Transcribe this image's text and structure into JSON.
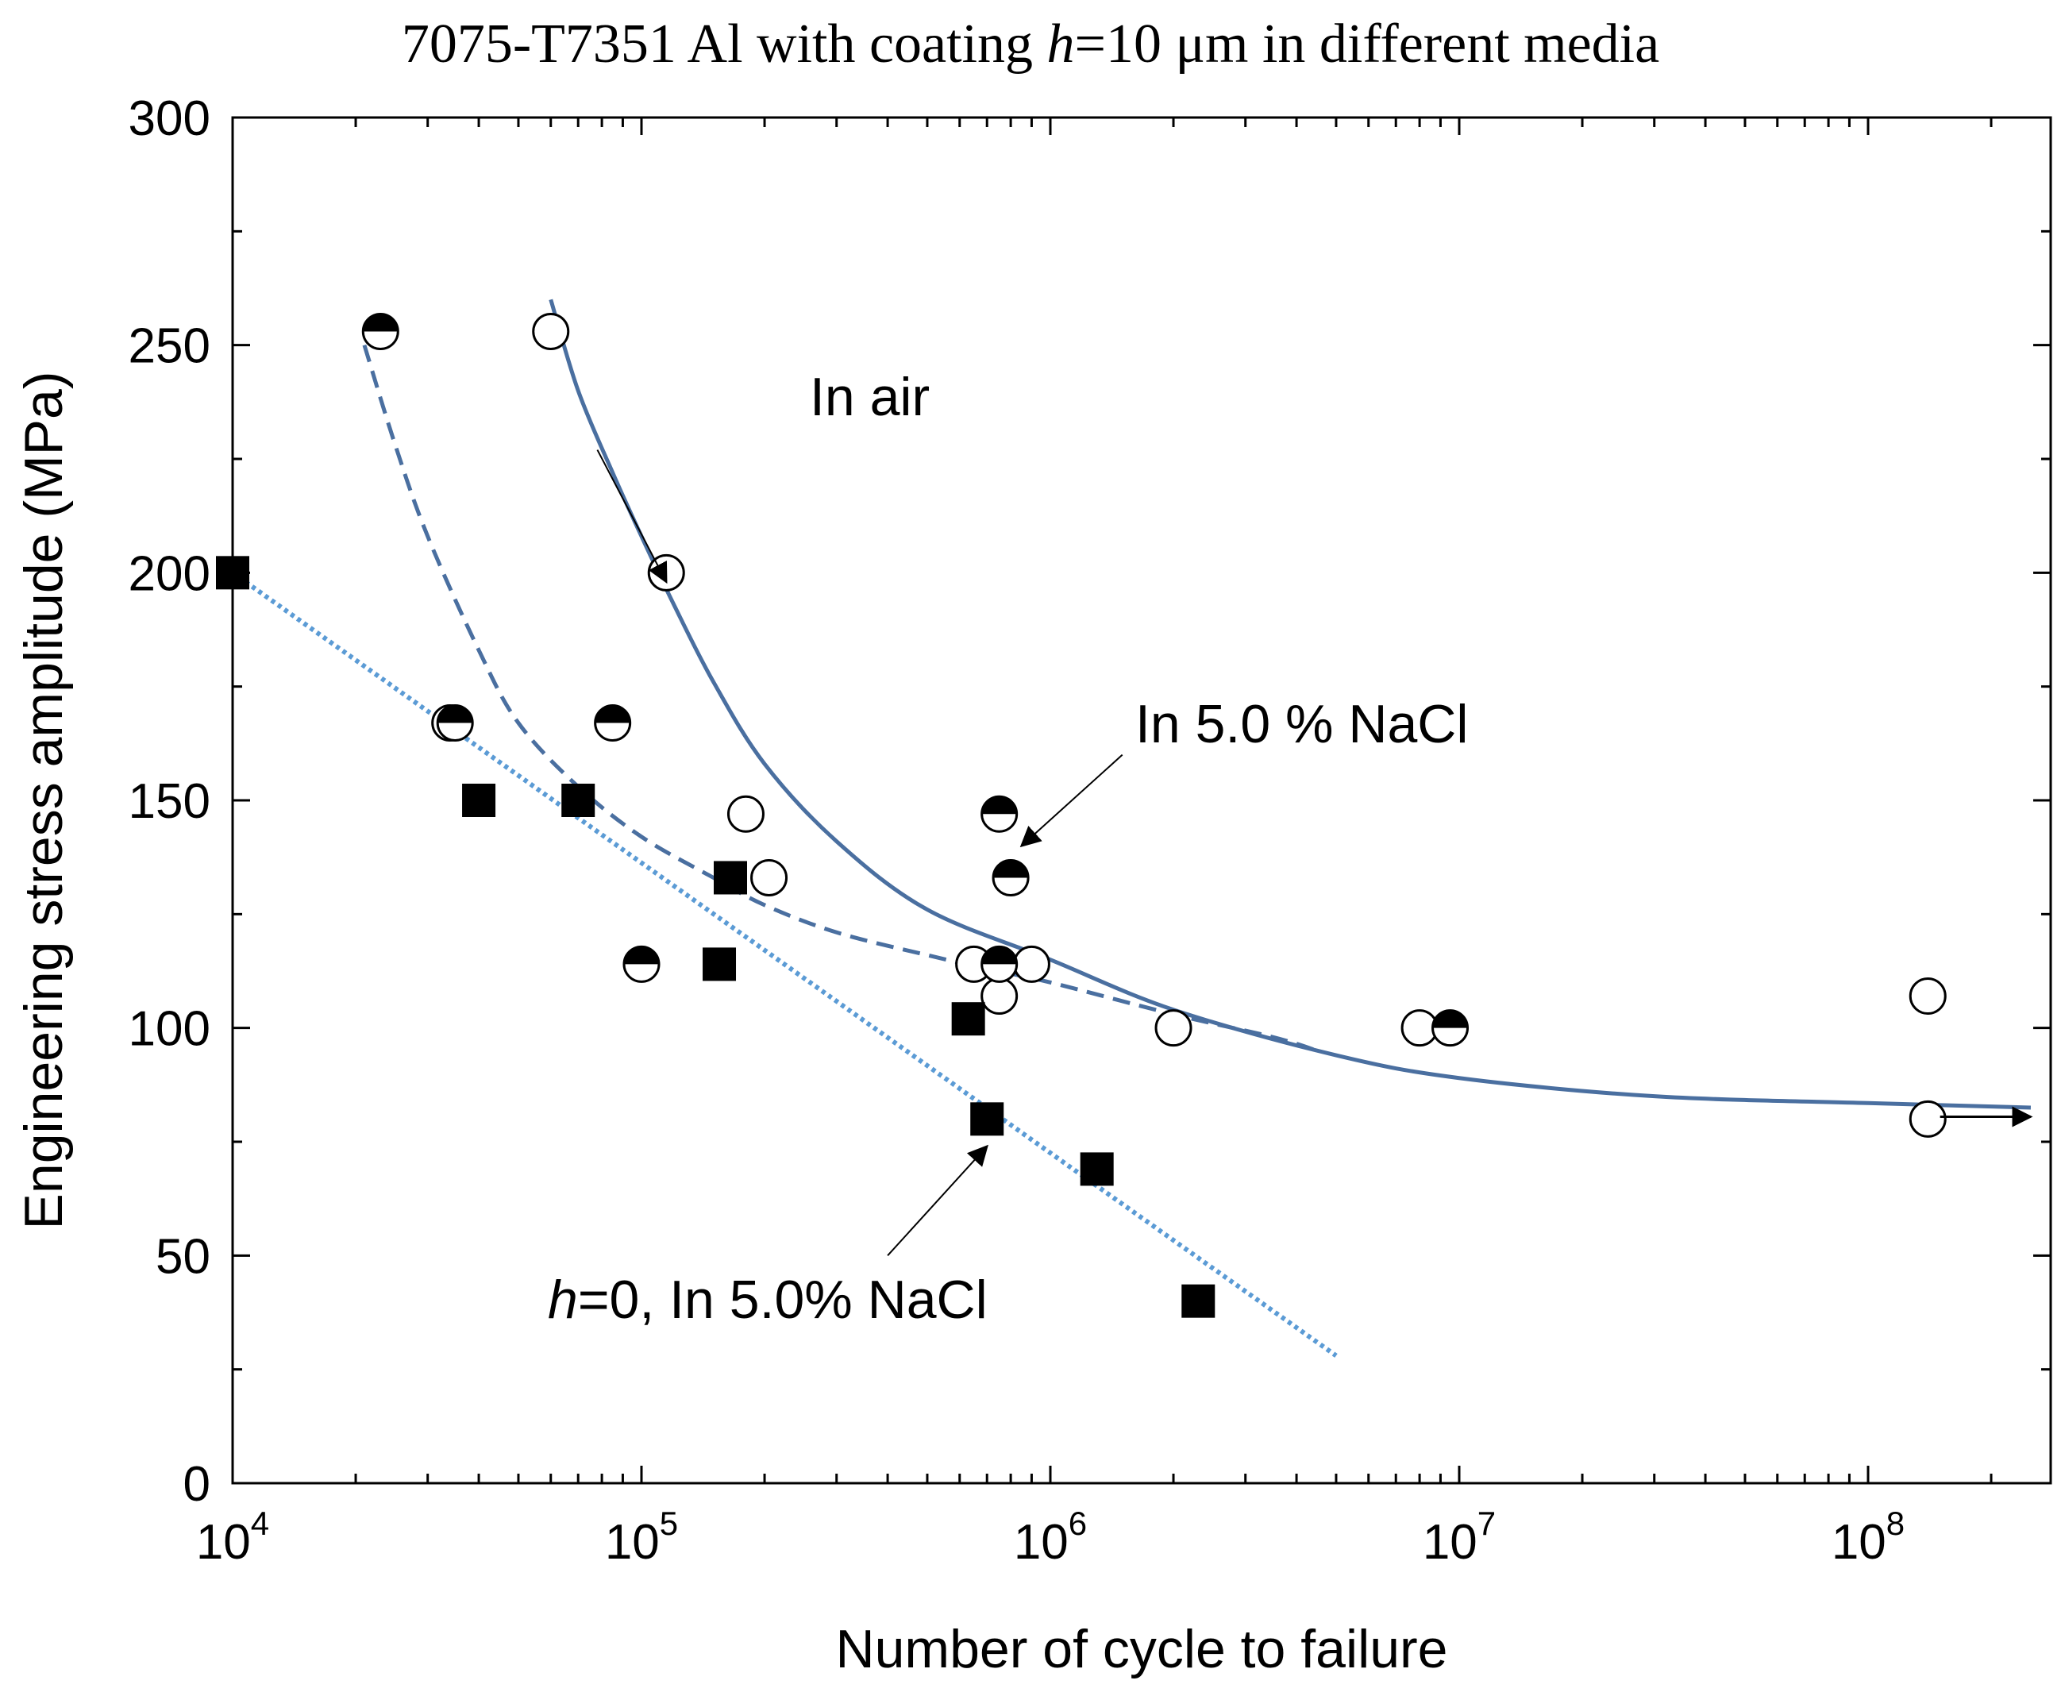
{
  "chart_data": {
    "type": "scatter",
    "title_parts": [
      "7075-T7351 Al with coating ",
      "h",
      "=10 μm in different media"
    ],
    "xlabel": "Number of cycle to failure",
    "ylabel": "Engineering stress amplitude (MPa)",
    "xscale": "log",
    "xlim": [
      10000,
      300000000
    ],
    "ylim": [
      0,
      300
    ],
    "x_ticks": [
      {
        "base": "10",
        "exp": "4",
        "value": 10000
      },
      {
        "base": "10",
        "exp": "5",
        "value": 100000
      },
      {
        "base": "10",
        "exp": "6",
        "value": 1000000
      },
      {
        "base": "10",
        "exp": "7",
        "value": 10000000
      },
      {
        "base": "10",
        "exp": "8",
        "value": 100000000
      }
    ],
    "y_ticks": [
      "0",
      "50",
      "100",
      "150",
      "200",
      "250",
      "300"
    ],
    "series": [
      {
        "name": "In air",
        "marker": "open-circle",
        "points": [
          [
            60000,
            253
          ],
          [
            115000,
            200
          ],
          [
            34000,
            167
          ],
          [
            180000,
            147
          ],
          [
            205000,
            133
          ],
          [
            650000,
            114
          ],
          [
            900000,
            114
          ],
          [
            750000,
            107
          ],
          [
            2000000,
            100
          ],
          [
            8000000,
            100
          ],
          [
            140000000,
            107
          ],
          [
            140000000,
            80
          ]
        ]
      },
      {
        "name": "In 5.0 % NaCl",
        "marker": "half-filled-circle",
        "points": [
          [
            23000,
            253
          ],
          [
            35000,
            167
          ],
          [
            85000,
            167
          ],
          [
            100000,
            114
          ],
          [
            750000,
            147
          ],
          [
            800000,
            133
          ],
          [
            750000,
            114
          ],
          [
            9500000,
            100
          ]
        ]
      },
      {
        "name": "h=0, In 5.0% NaCl",
        "marker": "filled-square",
        "points": [
          [
            10000,
            200
          ],
          [
            40000,
            150
          ],
          [
            70000,
            150
          ],
          [
            165000,
            133
          ],
          [
            155000,
            114
          ],
          [
            630000,
            102
          ],
          [
            700000,
            80
          ],
          [
            1300000,
            69
          ],
          [
            2300000,
            40
          ]
        ]
      }
    ],
    "fit_curves": [
      {
        "name": "In air",
        "style": "solid",
        "points": [
          [
            60000,
            260
          ],
          [
            70000,
            240
          ],
          [
            85000,
            222
          ],
          [
            100000,
            208
          ],
          [
            120000,
            193
          ],
          [
            150000,
            176
          ],
          [
            200000,
            158
          ],
          [
            300000,
            141
          ],
          [
            500000,
            126
          ],
          [
            1000000,
            115
          ],
          [
            2000000,
            104
          ],
          [
            5000000,
            94
          ],
          [
            10000000,
            89
          ],
          [
            30000000,
            85
          ],
          [
            100000000,
            83.5
          ],
          [
            250000000,
            82.5
          ]
        ]
      },
      {
        "name": "In 5.0 % NaCl",
        "style": "dashed",
        "points": [
          [
            21000,
            250
          ],
          [
            25000,
            228
          ],
          [
            30000,
            208
          ],
          [
            40000,
            183
          ],
          [
            50000,
            167
          ],
          [
            70000,
            153
          ],
          [
            100000,
            142
          ],
          [
            150000,
            133
          ],
          [
            200000,
            127
          ],
          [
            300000,
            121
          ],
          [
            500000,
            116
          ],
          [
            700000,
            113
          ],
          [
            1000000,
            110
          ],
          [
            2000000,
            103
          ],
          [
            3500000,
            98
          ],
          [
            4500000,
            95
          ]
        ]
      },
      {
        "name": "h=0, In 5.0% NaCl",
        "style": "dotted",
        "points": [
          [
            10000,
            200
          ],
          [
            5000000,
            28
          ]
        ]
      }
    ],
    "annotations": [
      {
        "text": "In air",
        "italic_prefix": "",
        "arrow_from": [
          78000,
          227
        ],
        "arrow_to": [
          115000,
          198
        ]
      },
      {
        "text": "In 5.0 % NaCl",
        "italic_prefix": "",
        "arrow_from": [
          1500000,
          160
        ],
        "arrow_to": [
          850000,
          140
        ]
      },
      {
        "text": "=0, In 5.0% NaCl",
        "italic_prefix": "h",
        "arrow_from": [
          400000,
          50
        ],
        "arrow_to": [
          700000,
          74
        ]
      }
    ],
    "end_arrow": {
      "from": [
        150000000,
        80.5
      ],
      "to": [
        250000000,
        80.5
      ]
    },
    "colors": {
      "fit_line": "#4a6fa0",
      "dotted_line": "#5b9bd5",
      "marker": "#000000",
      "annotation_arrow": "#000000"
    }
  }
}
